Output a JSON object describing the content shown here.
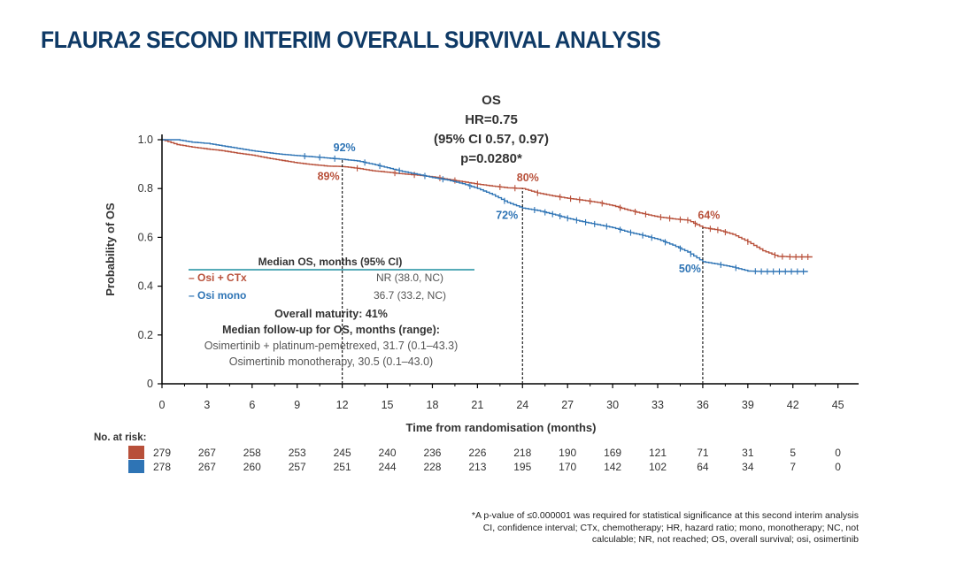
{
  "slide": {
    "title": "FLAURA2 SECOND INTERIM OVERALL SURVIVAL ANALYSIS"
  },
  "stats": {
    "line1": "OS",
    "line2": "HR=0.75",
    "line3": "(95% CI 0.57, 0.97)",
    "line4": "p=0.0280*"
  },
  "table": {
    "header": "Median OS, months (95% CI)",
    "rows": [
      {
        "label": "Osi + CTx",
        "value": "NR (38.0, NC)",
        "color": "#b8503a"
      },
      {
        "label": "Osi mono",
        "value": "36.7 (33.2, NC)",
        "color": "#2e74b5"
      }
    ]
  },
  "maturity": {
    "line1": "Overall maturity: 41%",
    "line2": "Median follow-up for OS, months (range):",
    "line3": "Osimertinib + platinum-pemetrexed, 31.7 (0.1–43.3)",
    "line4": "Osimertinib monotherapy, 30.5 (0.1–43.0)"
  },
  "risk": {
    "label": "No. at risk:",
    "rows": [
      {
        "color": "#b8503a",
        "values": [
          "279",
          "267",
          "258",
          "253",
          "245",
          "240",
          "236",
          "226",
          "218",
          "190",
          "169",
          "121",
          "71",
          "31",
          "5",
          "0"
        ]
      },
      {
        "color": "#2e74b5",
        "values": [
          "278",
          "267",
          "260",
          "257",
          "251",
          "244",
          "228",
          "213",
          "195",
          "170",
          "142",
          "102",
          "64",
          "34",
          "7",
          "0"
        ]
      }
    ]
  },
  "footnotes": {
    "line1": "*A p-value of ≤0.000001 was required for statistical significance at this second interim analysis",
    "line2": "CI, confidence interval; CTx, chemotherapy; HR, hazard ratio; mono, monotherapy; NC, not",
    "line3": "calculable; NR, not reached; OS, overall survival; osi, osimertinib"
  },
  "chart_data": {
    "type": "line",
    "title": "",
    "xlabel": "Time from randomisation (months)",
    "ylabel": "Probability of OS",
    "xlim": [
      0,
      46
    ],
    "ylim": [
      0,
      1.0
    ],
    "xticks": [
      0,
      3,
      6,
      9,
      12,
      15,
      18,
      21,
      24,
      27,
      30,
      33,
      36,
      39,
      42,
      45
    ],
    "yticks": [
      0,
      0.2,
      0.4,
      0.6,
      0.8,
      1.0
    ],
    "ytick_labels": [
      "0",
      "0.2",
      "0.4",
      "0.6",
      "0.8",
      "1.0"
    ],
    "series": [
      {
        "name": "Osi + CTx",
        "color": "#b8503a",
        "points": [
          [
            0,
            1.0
          ],
          [
            1,
            0.98
          ],
          [
            2,
            0.97
          ],
          [
            3,
            0.962
          ],
          [
            4,
            0.955
          ],
          [
            5,
            0.945
          ],
          [
            6,
            0.937
          ],
          [
            7,
            0.925
          ],
          [
            8,
            0.915
          ],
          [
            9,
            0.905
          ],
          [
            10,
            0.898
          ],
          [
            11,
            0.892
          ],
          [
            12,
            0.89
          ],
          [
            13,
            0.883
          ],
          [
            14,
            0.873
          ],
          [
            15,
            0.867
          ],
          [
            16,
            0.86
          ],
          [
            17,
            0.855
          ],
          [
            18,
            0.848
          ],
          [
            19,
            0.838
          ],
          [
            20,
            0.828
          ],
          [
            21,
            0.818
          ],
          [
            22,
            0.81
          ],
          [
            23,
            0.803
          ],
          [
            24,
            0.8
          ],
          [
            25,
            0.782
          ],
          [
            26,
            0.77
          ],
          [
            27,
            0.76
          ],
          [
            28,
            0.752
          ],
          [
            29,
            0.743
          ],
          [
            30,
            0.73
          ],
          [
            31,
            0.712
          ],
          [
            32,
            0.697
          ],
          [
            33,
            0.684
          ],
          [
            34,
            0.676
          ],
          [
            35,
            0.67
          ],
          [
            36,
            0.64
          ],
          [
            37,
            0.63
          ],
          [
            38,
            0.612
          ],
          [
            39,
            0.582
          ],
          [
            40,
            0.545
          ],
          [
            41,
            0.522
          ],
          [
            42,
            0.52
          ],
          [
            43.3,
            0.52
          ]
        ],
        "censor_marks": [
          13,
          15.5,
          16.8,
          18.5,
          19.5,
          21,
          22.5,
          23.5,
          25,
          26.5,
          27.2,
          27.8,
          28.5,
          29.3,
          30.5,
          31.5,
          32.2,
          33.2,
          33.8,
          34.5,
          35,
          35.5,
          36.5,
          37,
          37.5,
          39,
          40.8,
          41.3,
          41.8,
          42.2,
          42.6,
          43
        ],
        "annotations": [
          {
            "x": 12,
            "y": 0.89,
            "label": "89%"
          },
          {
            "x": 24,
            "y": 0.8,
            "label": "80%"
          },
          {
            "x": 36,
            "y": 0.64,
            "label": "64%"
          }
        ]
      },
      {
        "name": "Osi mono",
        "color": "#2e74b5",
        "points": [
          [
            0,
            1.0
          ],
          [
            1,
            1.0
          ],
          [
            2,
            0.99
          ],
          [
            3,
            0.985
          ],
          [
            4,
            0.975
          ],
          [
            5,
            0.965
          ],
          [
            6,
            0.955
          ],
          [
            7,
            0.947
          ],
          [
            8,
            0.94
          ],
          [
            9,
            0.935
          ],
          [
            10,
            0.93
          ],
          [
            11,
            0.925
          ],
          [
            12,
            0.92
          ],
          [
            13,
            0.913
          ],
          [
            14,
            0.9
          ],
          [
            15,
            0.885
          ],
          [
            16,
            0.87
          ],
          [
            17,
            0.858
          ],
          [
            18,
            0.845
          ],
          [
            19,
            0.835
          ],
          [
            20,
            0.82
          ],
          [
            21,
            0.8
          ],
          [
            22,
            0.775
          ],
          [
            23,
            0.743
          ],
          [
            24,
            0.72
          ],
          [
            25,
            0.71
          ],
          [
            26,
            0.695
          ],
          [
            27,
            0.678
          ],
          [
            28,
            0.664
          ],
          [
            29,
            0.652
          ],
          [
            30,
            0.64
          ],
          [
            31,
            0.622
          ],
          [
            32,
            0.608
          ],
          [
            33,
            0.592
          ],
          [
            34,
            0.568
          ],
          [
            35,
            0.54
          ],
          [
            36,
            0.5
          ],
          [
            37,
            0.49
          ],
          [
            38,
            0.478
          ],
          [
            39,
            0.462
          ],
          [
            40,
            0.46
          ],
          [
            41,
            0.46
          ],
          [
            43,
            0.46
          ]
        ],
        "censor_marks": [
          9.5,
          10.5,
          11.5,
          13.5,
          14.5,
          15.8,
          17.5,
          18.7,
          20.5,
          22.8,
          24.8,
          25.5,
          26,
          26.5,
          27,
          27.6,
          28.2,
          28.8,
          29.6,
          30.5,
          31.2,
          32,
          32.6,
          33.5,
          34.5,
          35.2,
          37.2,
          38.2,
          39.5,
          39.9,
          40.3,
          40.7,
          41.1,
          41.5,
          41.9,
          42.3,
          42.7
        ],
        "annotations": [
          {
            "x": 12,
            "y": 0.92,
            "label": "92%"
          },
          {
            "x": 24,
            "y": 0.72,
            "label": "72%"
          },
          {
            "x": 36,
            "y": 0.5,
            "label": "50%"
          }
        ]
      }
    ]
  }
}
